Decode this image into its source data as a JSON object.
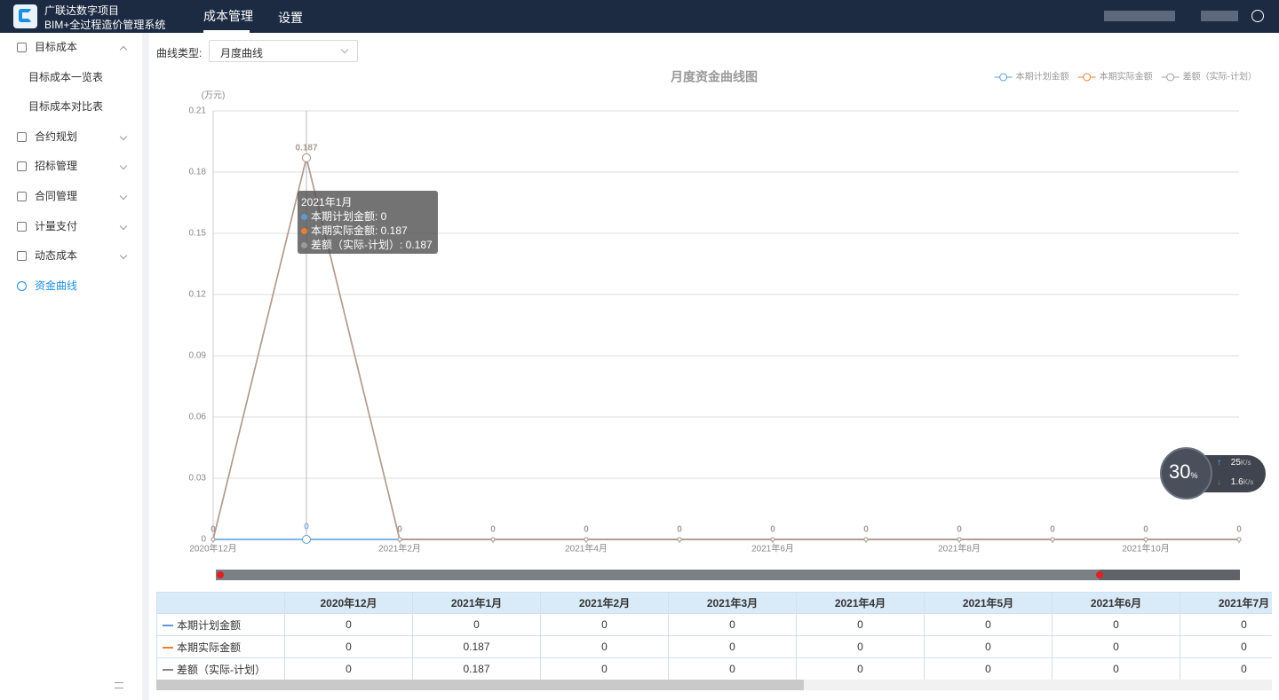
{
  "header": {
    "brand_line1": "广联达数字项目",
    "brand_line2": "BIM+全过程造价管理系统",
    "nav": [
      "成本管理",
      "设置"
    ]
  },
  "sidebar": {
    "menu": [
      {
        "label": "目标成本",
        "children": [
          "目标成本一览表",
          "目标成本对比表"
        ]
      },
      {
        "label": "合约规划"
      },
      {
        "label": "招标管理"
      },
      {
        "label": "合同管理"
      },
      {
        "label": "计量支付"
      },
      {
        "label": "动态成本"
      },
      {
        "label": "资金曲线"
      }
    ]
  },
  "filter": {
    "label": "曲线类型:",
    "value": "月度曲线"
  },
  "chart_data": {
    "type": "line",
    "title": "月度资金曲线图",
    "y_unit": "(万元)",
    "categories": [
      "2020年12月",
      null,
      "2021年2月",
      null,
      "2021年4月",
      null,
      "2021年6月",
      null,
      "2021年8月",
      null,
      "2021年10月",
      null
    ],
    "series": [
      {
        "name": "本期计划金额",
        "color": "#5b9bd5",
        "values": [
          0,
          0,
          0,
          0,
          0,
          0,
          0,
          0,
          0,
          0,
          0,
          0
        ]
      },
      {
        "name": "本期实际金额",
        "color": "#ed7d31",
        "values": [
          0,
          0.187,
          0,
          0,
          0,
          0,
          0,
          0,
          0,
          0,
          0,
          0
        ]
      },
      {
        "name": "差额（实际-计划）",
        "color": "#a99c96",
        "values": [
          0,
          0.187,
          0,
          0,
          0,
          0,
          0,
          0,
          0,
          0,
          0,
          0
        ]
      }
    ],
    "ylim": [
      0,
      0.21
    ],
    "yticks": [
      0,
      0.03,
      0.06,
      0.09,
      0.12,
      0.15,
      0.18,
      0.21
    ],
    "grid": true,
    "legend": "top-right"
  },
  "tooltip": {
    "title": "2021年1月",
    "items": [
      "本期计划金额: 0",
      "本期实际金额: 0.187",
      "差额（实际-计划）: 0.187"
    ]
  },
  "table": {
    "columns": [
      "2020年12月",
      "2021年1月",
      "2021年2月",
      "2021年3月",
      "2021年4月",
      "2021年5月",
      "2021年6月",
      "2021年7月"
    ],
    "rows": [
      {
        "name": "本期计划金额",
        "values": [
          0,
          0,
          0,
          0,
          0,
          0,
          0,
          0
        ]
      },
      {
        "name": "本期实际金额",
        "values": [
          0,
          0.187,
          0,
          0,
          0,
          0,
          0,
          0
        ]
      },
      {
        "name": "差额（实际-计划）",
        "values": [
          0,
          0.187,
          0,
          0,
          0,
          0,
          0,
          0
        ]
      }
    ]
  },
  "speed_widget": {
    "percent": 30,
    "percent_unit": "%",
    "upload": 25,
    "download": 1.6,
    "unit": "K/s"
  }
}
